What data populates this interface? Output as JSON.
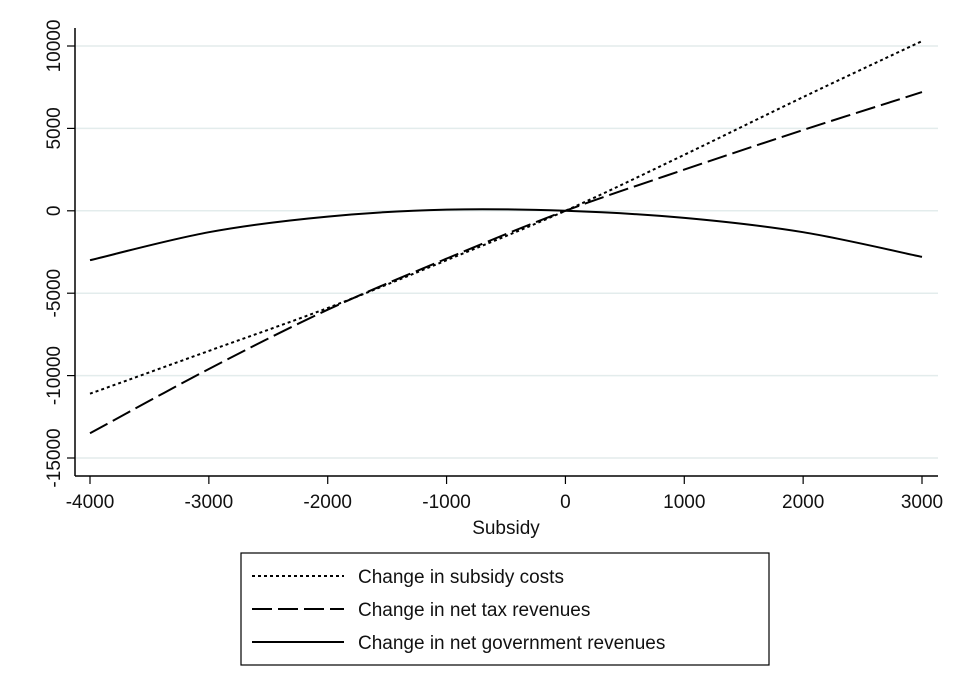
{
  "chart_data": {
    "type": "line",
    "title": "",
    "xlabel": "Subsidy",
    "ylabel": "",
    "xlim": [
      -4000,
      3000
    ],
    "ylim": [
      -15000,
      10000
    ],
    "xticks": [
      -4000,
      -3000,
      -2000,
      -1000,
      0,
      1000,
      2000,
      3000
    ],
    "yticks": [
      -15000,
      -10000,
      -5000,
      0,
      5000,
      10000
    ],
    "xtick_labels": [
      "-4000",
      "-3000",
      "-2000",
      "-1000",
      "0",
      "1000",
      "2000",
      "3000"
    ],
    "ytick_labels": [
      "-15000",
      "-10000",
      "-5000",
      "0",
      "5000",
      "10000"
    ],
    "grid": "horizontal",
    "legend": "bottom",
    "colors": {
      "line": "#000000",
      "grid": "#e3ecec",
      "axis": "#000000"
    },
    "x": [
      -4000,
      -3000,
      -2000,
      -1000,
      0,
      1000,
      2000,
      3000
    ],
    "series": [
      {
        "name": "Change in subsidy costs",
        "style": "dotted",
        "values": [
          -11100,
          -8500,
          -5900,
          -3000,
          0,
          3400,
          6900,
          10300
        ]
      },
      {
        "name": "Change in net tax revenues",
        "style": "dashed",
        "values": [
          -13500,
          -9600,
          -6000,
          -2900,
          0,
          2500,
          4900,
          7200
        ]
      },
      {
        "name": "Change in net government revenues",
        "style": "solid",
        "values": [
          -3000,
          -1300,
          -350,
          70,
          0,
          -430,
          -1300,
          -2800
        ]
      }
    ]
  }
}
